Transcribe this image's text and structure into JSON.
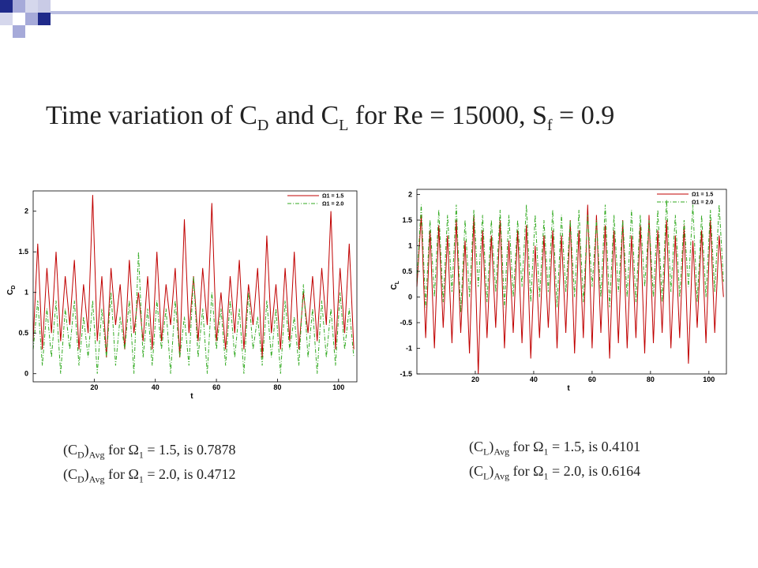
{
  "slide": {
    "title_parts": [
      "Time variation of C",
      "D",
      " and C",
      "L",
      " for Re = 15000, S",
      "f",
      " = 0.9"
    ]
  },
  "decoration": {
    "colors": {
      "navy": "#1f2a8a",
      "lavender": "#a6aad9",
      "pale": "#d5d7ec",
      "line": "#b9bde0"
    }
  },
  "notes_left": [
    {
      "a": "(C",
      "b": "D",
      "c": ")",
      "d": "Avg",
      "e": " for ",
      "f": "Ω",
      "g": "1",
      "h": " = 1.5, is 0.7878"
    },
    {
      "a": "(C",
      "b": "D",
      "c": ")",
      "d": "Avg",
      "e": " for ",
      "f": "Ω",
      "g": "1",
      "h": " = 2.0, is 0.4712"
    }
  ],
  "notes_right": [
    {
      "a": "(C",
      "b": "L",
      "c": ")",
      "d": "Avg",
      "e": " for ",
      "f": "Ω",
      "g": "1",
      "h": " = 1.5, is 0.4101"
    },
    {
      "a": "(C",
      "b": "L",
      "c": ")",
      "d": "Avg",
      "e": " for ",
      "f": "Ω",
      "g": "1",
      "h": " = 2.0, is 0.6164"
    }
  ],
  "chart_data": [
    {
      "type": "line",
      "xlabel": "t",
      "ylabel_base": "C",
      "ylabel_sub": "D",
      "xlim": [
        0,
        106
      ],
      "ylim": [
        -0.1,
        2.25
      ],
      "xticks": [
        20,
        40,
        60,
        80,
        100
      ],
      "xtick_labels": [
        "20",
        "40",
        "60",
        "80",
        "100"
      ],
      "yticks": [
        0,
        0.5,
        1,
        1.5,
        2
      ],
      "ytick_labels": [
        "0",
        "0.5",
        "1",
        "1.5",
        "2"
      ],
      "grid": false,
      "legend_position": "top-right",
      "series": [
        {
          "name": "Ω1 = 1.5",
          "color": "#c00000",
          "dash": "solid",
          "x": [
            0,
            1.5,
            3,
            4.5,
            6,
            7.5,
            9,
            10.5,
            12,
            13.5,
            15,
            16.5,
            18,
            19.5,
            21,
            22.5,
            24,
            25.5,
            27,
            28.5,
            30,
            31.5,
            33,
            34.5,
            36,
            37.5,
            39,
            40.5,
            42,
            43.5,
            45,
            46.5,
            48,
            49.5,
            51,
            52.5,
            54,
            55.5,
            57,
            58.5,
            60,
            61.5,
            63,
            64.5,
            66,
            67.5,
            69,
            70.5,
            72,
            73.5,
            75,
            76.5,
            78,
            79.5,
            81,
            82.5,
            84,
            85.5,
            87,
            88.5,
            90,
            91.5,
            93,
            94.5,
            96,
            97.5,
            99,
            100.5,
            102,
            103.5,
            105
          ],
          "y": [
            0.4,
            1.6,
            0.3,
            1.3,
            0.5,
            1.5,
            0.4,
            1.2,
            0.6,
            1.4,
            0.3,
            1.1,
            0.5,
            2.2,
            0.4,
            1.2,
            0.2,
            1.3,
            0.6,
            1.1,
            0.3,
            1.4,
            0.5,
            1.0,
            0.4,
            1.2,
            0.3,
            1.5,
            0.4,
            1.1,
            0.6,
            1.3,
            0.2,
            1.9,
            0.5,
            1.2,
            0.4,
            1.3,
            0.6,
            2.1,
            0.4,
            1.0,
            0.3,
            1.2,
            0.5,
            1.4,
            0.3,
            1.1,
            0.6,
            1.3,
            0.2,
            1.7,
            0.5,
            1.1,
            0.3,
            1.3,
            0.4,
            1.5,
            0.3,
            1.0,
            0.5,
            1.2,
            0.4,
            1.3,
            0.6,
            2.0,
            0.3,
            1.3,
            0.5,
            1.6,
            0.3
          ]
        },
        {
          "name": "Ω1 = 2.0",
          "color": "#33aa22",
          "dash": "dashdot",
          "x": [
            0,
            1.5,
            3,
            4.5,
            6,
            7.5,
            9,
            10.5,
            12,
            13.5,
            15,
            16.5,
            18,
            19.5,
            21,
            22.5,
            24,
            25.5,
            27,
            28.5,
            30,
            31.5,
            33,
            34.5,
            36,
            37.5,
            39,
            40.5,
            42,
            43.5,
            45,
            46.5,
            48,
            49.5,
            51,
            52.5,
            54,
            55.5,
            57,
            58.5,
            60,
            61.5,
            63,
            64.5,
            66,
            67.5,
            69,
            70.5,
            72,
            73.5,
            75,
            76.5,
            78,
            79.5,
            81,
            82.5,
            84,
            85.5,
            87,
            88.5,
            90,
            91.5,
            93,
            94.5,
            96,
            97.5,
            99,
            100.5,
            102,
            103.5,
            105
          ],
          "y": [
            0.3,
            0.9,
            0.1,
            0.8,
            0.2,
            0.9,
            0.0,
            0.8,
            0.3,
            0.9,
            0.1,
            0.7,
            0.2,
            0.9,
            0.0,
            0.8,
            0.2,
            1.0,
            0.1,
            0.7,
            0.3,
            0.9,
            0.0,
            1.5,
            0.2,
            0.8,
            0.1,
            0.9,
            0.3,
            0.8,
            0.0,
            0.9,
            0.2,
            0.7,
            0.1,
            1.2,
            0.2,
            0.8,
            0.0,
            1.0,
            0.3,
            0.8,
            0.1,
            0.9,
            0.2,
            0.8,
            0.0,
            1.0,
            0.3,
            0.7,
            0.1,
            0.9,
            0.2,
            0.8,
            0.0,
            0.9,
            0.3,
            0.7,
            0.1,
            1.1,
            0.2,
            0.8,
            0.0,
            0.9,
            0.2,
            0.8,
            0.1,
            1.0,
            0.3,
            0.8,
            0.2
          ]
        }
      ]
    },
    {
      "type": "line",
      "xlabel": "t",
      "ylabel_base": "C",
      "ylabel_sub": "L",
      "xlim": [
        0,
        106
      ],
      "ylim": [
        -1.5,
        2.1
      ],
      "xticks": [
        20,
        40,
        60,
        80,
        100
      ],
      "xtick_labels": [
        "20",
        "40",
        "60",
        "80",
        "100"
      ],
      "yticks": [
        -1.5,
        -1,
        -0.5,
        0,
        0.5,
        1,
        1.5,
        2
      ],
      "ytick_labels": [
        "-1.5",
        "-1",
        "-0.5",
        "0",
        "0.5",
        "1",
        "1.5",
        "2"
      ],
      "grid": false,
      "legend_position": "top-right",
      "series": [
        {
          "name": "Ω1 = 1.5",
          "color": "#c00000",
          "dash": "solid",
          "x": [
            0,
            1.5,
            3,
            4.5,
            6,
            7.5,
            9,
            10.5,
            12,
            13.5,
            15,
            16.5,
            18,
            19.5,
            21,
            22.5,
            24,
            25.5,
            27,
            28.5,
            30,
            31.5,
            33,
            34.5,
            36,
            37.5,
            39,
            40.5,
            42,
            43.5,
            45,
            46.5,
            48,
            49.5,
            51,
            52.5,
            54,
            55.5,
            57,
            58.5,
            60,
            61.5,
            63,
            64.5,
            66,
            67.5,
            69,
            70.5,
            72,
            73.5,
            75,
            76.5,
            78,
            79.5,
            81,
            82.5,
            84,
            85.5,
            87,
            88.5,
            90,
            91.5,
            93,
            94.5,
            96,
            97.5,
            99,
            100.5,
            102,
            103.5,
            105
          ],
          "y": [
            0.2,
            1.6,
            -0.8,
            1.3,
            -1.0,
            1.4,
            -0.6,
            1.2,
            -0.9,
            1.5,
            -0.7,
            1.1,
            -1.1,
            1.6,
            -1.5,
            1.3,
            -0.8,
            1.2,
            -0.6,
            1.5,
            -1.0,
            1.1,
            -0.7,
            1.3,
            -0.9,
            1.4,
            -1.2,
            1.0,
            -0.8,
            1.2,
            -0.6,
            1.3,
            -1.0,
            1.2,
            -0.7,
            1.5,
            -1.1,
            1.3,
            -0.8,
            1.8,
            -1.0,
            1.6,
            -0.7,
            1.4,
            -1.2,
            1.3,
            -0.9,
            1.5,
            -1.0,
            1.2,
            -0.8,
            1.4,
            -1.1,
            1.6,
            -0.9,
            1.3,
            -0.7,
            1.5,
            -1.0,
            1.2,
            -0.8,
            1.4,
            -1.3,
            1.1,
            -0.6,
            1.3,
            -0.9,
            1.5,
            -0.7,
            1.2,
            0.0
          ]
        },
        {
          "name": "Ω1 = 2.0",
          "color": "#33aa22",
          "dash": "dashdot",
          "x": [
            0,
            1.5,
            3,
            4.5,
            6,
            7.5,
            9,
            10.5,
            12,
            13.5,
            15,
            16.5,
            18,
            19.5,
            21,
            22.5,
            24,
            25.5,
            27,
            28.5,
            30,
            31.5,
            33,
            34.5,
            36,
            37.5,
            39,
            40.5,
            42,
            43.5,
            45,
            46.5,
            48,
            49.5,
            51,
            52.5,
            54,
            55.5,
            57,
            58.5,
            60,
            61.5,
            63,
            64.5,
            66,
            67.5,
            69,
            70.5,
            72,
            73.5,
            75,
            76.5,
            78,
            79.5,
            81,
            82.5,
            84,
            85.5,
            87,
            88.5,
            90,
            91.5,
            93,
            94.5,
            96,
            97.5,
            99,
            100.5,
            102,
            103.5,
            105
          ],
          "y": [
            0.3,
            1.8,
            -0.2,
            1.5,
            0.0,
            1.7,
            -0.1,
            1.6,
            0.1,
            1.8,
            -0.3,
            1.5,
            0.0,
            1.7,
            0.2,
            1.6,
            -0.1,
            1.5,
            0.1,
            1.7,
            -0.2,
            1.6,
            0.0,
            1.5,
            0.2,
            1.8,
            -0.1,
            1.6,
            0.0,
            1.5,
            0.1,
            1.7,
            -0.2,
            1.6,
            0.1,
            1.5,
            0.0,
            1.7,
            -0.1,
            1.6,
            0.2,
            1.5,
            0.0,
            1.8,
            -0.2,
            1.6,
            0.1,
            1.5,
            0.0,
            1.7,
            -0.1,
            1.6,
            0.2,
            1.5,
            0.0,
            1.7,
            -0.1,
            1.9,
            0.1,
            1.6,
            0.0,
            1.5,
            0.2,
            1.8,
            -0.1,
            1.6,
            0.0,
            1.7,
            0.1,
            1.8,
            0.3
          ]
        }
      ]
    }
  ]
}
